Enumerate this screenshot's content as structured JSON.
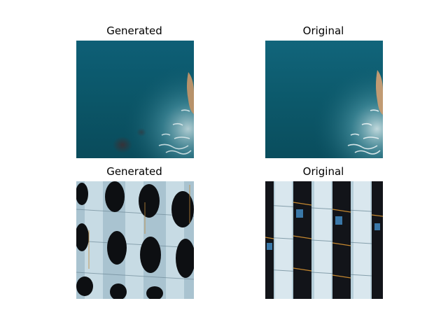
{
  "figure": {
    "panels": [
      {
        "title": "Generated",
        "scene": "sea-coast",
        "variant": "generated"
      },
      {
        "title": "Original",
        "scene": "sea-coast",
        "variant": "original"
      },
      {
        "title": "Generated",
        "scene": "building-facade",
        "variant": "generated"
      },
      {
        "title": "Original",
        "scene": "building-facade",
        "variant": "original"
      }
    ]
  }
}
